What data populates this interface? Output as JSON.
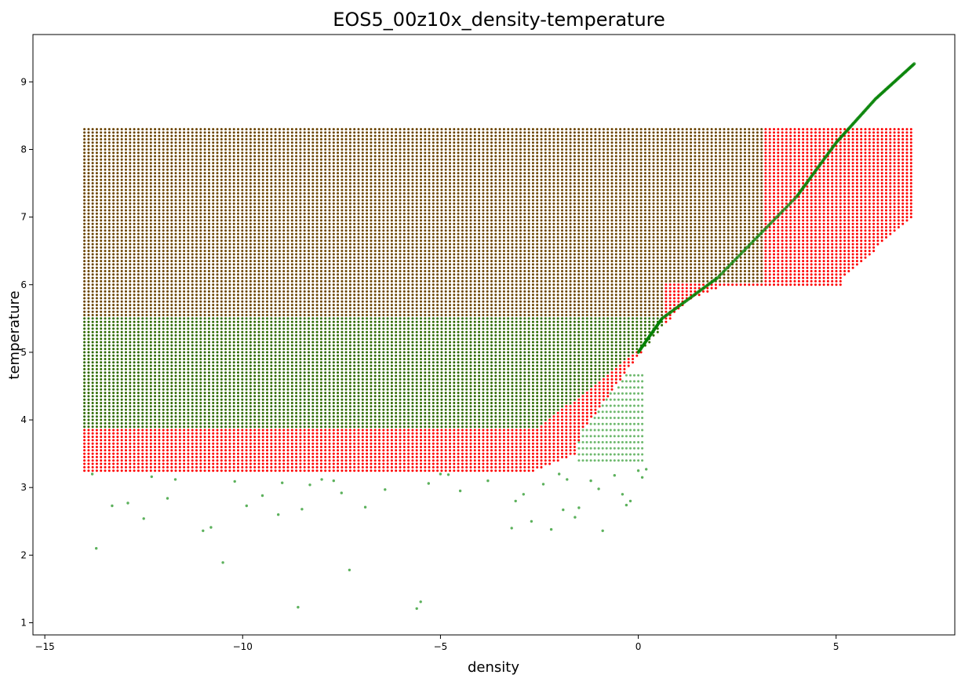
{
  "chart_data": {
    "type": "scatter",
    "title": "EOS5_00z10x_density-temperature",
    "xlabel": "density",
    "ylabel": "temperature",
    "xlim": [
      -15.3,
      8.0
    ],
    "ylim": [
      0.82,
      9.7
    ],
    "xticks": [
      -15,
      -10,
      -5,
      0,
      5
    ],
    "yticks": [
      1,
      2,
      3,
      4,
      5,
      6,
      7,
      8,
      9
    ],
    "grid": false,
    "legend": "none",
    "colors": {
      "red_series": "#ff0000",
      "green_series": "#008000",
      "overlap": "#6b4400"
    },
    "series": [
      {
        "color": "#ff0000",
        "density_range": [
          -14.0,
          7.0
        ],
        "temperature_range": [
          3.25,
          8.3
        ],
        "boundary_points": [
          {
            "x": -14.0,
            "y": 3.25
          },
          {
            "x": -2.6,
            "y": 3.25
          },
          {
            "x": -1.6,
            "y": 3.5
          },
          {
            "x": -1.4,
            "y": 3.85
          },
          {
            "x": 0.0,
            "y": 4.95
          },
          {
            "x": 0.65,
            "y": 5.4
          },
          {
            "x": 1.2,
            "y": 5.75
          },
          {
            "x": 2.0,
            "y": 5.95
          },
          {
            "x": 5.1,
            "y": 5.95
          },
          {
            "x": 5.2,
            "y": 6.1
          },
          {
            "x": 7.0,
            "y": 7.05
          },
          {
            "x": 7.0,
            "y": 8.3
          },
          {
            "x": -14.0,
            "y": 8.3
          }
        ]
      },
      {
        "color": "#008000",
        "density_range": [
          -14.0,
          7.0
        ],
        "temperature_range": [
          1.2,
          9.3
        ],
        "diagonal_branch": [
          {
            "x": 0.0,
            "y": 5.0
          },
          {
            "x": 0.6,
            "y": 5.5
          },
          {
            "x": 2.0,
            "y": 6.1
          },
          {
            "x": 4.0,
            "y": 7.3
          },
          {
            "x": 5.0,
            "y": 8.1
          },
          {
            "x": 6.0,
            "y": 8.75
          },
          {
            "x": 7.0,
            "y": 9.28
          }
        ],
        "scattered_points": [
          {
            "x": -13.8,
            "y": 3.2
          },
          {
            "x": -13.7,
            "y": 2.1
          },
          {
            "x": -13.3,
            "y": 2.73
          },
          {
            "x": -12.9,
            "y": 2.77
          },
          {
            "x": -12.5,
            "y": 2.54
          },
          {
            "x": -12.3,
            "y": 3.16
          },
          {
            "x": -11.9,
            "y": 2.84
          },
          {
            "x": -11.7,
            "y": 3.12
          },
          {
            "x": -11.0,
            "y": 2.36
          },
          {
            "x": -10.8,
            "y": 2.41
          },
          {
            "x": -10.5,
            "y": 1.89
          },
          {
            "x": -10.2,
            "y": 3.09
          },
          {
            "x": -9.9,
            "y": 2.73
          },
          {
            "x": -9.5,
            "y": 2.88
          },
          {
            "x": -9.1,
            "y": 2.6
          },
          {
            "x": -9.0,
            "y": 3.07
          },
          {
            "x": -8.5,
            "y": 2.68
          },
          {
            "x": -8.6,
            "y": 1.23
          },
          {
            "x": -8.3,
            "y": 3.04
          },
          {
            "x": -8.0,
            "y": 3.12
          },
          {
            "x": -7.7,
            "y": 3.1
          },
          {
            "x": -7.5,
            "y": 2.92
          },
          {
            "x": -7.3,
            "y": 1.78
          },
          {
            "x": -6.9,
            "y": 2.71
          },
          {
            "x": -6.4,
            "y": 2.97
          },
          {
            "x": -5.6,
            "y": 1.21
          },
          {
            "x": -5.5,
            "y": 1.31
          },
          {
            "x": -5.3,
            "y": 3.06
          },
          {
            "x": -5.0,
            "y": 3.2
          },
          {
            "x": -4.8,
            "y": 3.19
          },
          {
            "x": -4.5,
            "y": 2.95
          },
          {
            "x": -3.8,
            "y": 3.1
          },
          {
            "x": -3.2,
            "y": 2.4
          },
          {
            "x": -3.1,
            "y": 2.8
          },
          {
            "x": -2.9,
            "y": 2.9
          },
          {
            "x": -2.7,
            "y": 2.5
          },
          {
            "x": -2.4,
            "y": 3.05
          },
          {
            "x": -2.2,
            "y": 2.38
          },
          {
            "x": -2.0,
            "y": 3.2
          },
          {
            "x": -1.9,
            "y": 2.67
          },
          {
            "x": -1.8,
            "y": 3.12
          },
          {
            "x": -1.6,
            "y": 2.56
          },
          {
            "x": -1.5,
            "y": 2.7
          },
          {
            "x": -1.2,
            "y": 3.1
          },
          {
            "x": -1.0,
            "y": 2.98
          },
          {
            "x": -0.9,
            "y": 2.36
          },
          {
            "x": -0.6,
            "y": 3.18
          },
          {
            "x": -0.4,
            "y": 2.9
          },
          {
            "x": -0.3,
            "y": 2.74
          },
          {
            "x": -0.2,
            "y": 2.8
          },
          {
            "x": 0.0,
            "y": 3.25
          },
          {
            "x": 0.1,
            "y": 3.15
          },
          {
            "x": 0.2,
            "y": 3.27
          }
        ]
      }
    ]
  }
}
